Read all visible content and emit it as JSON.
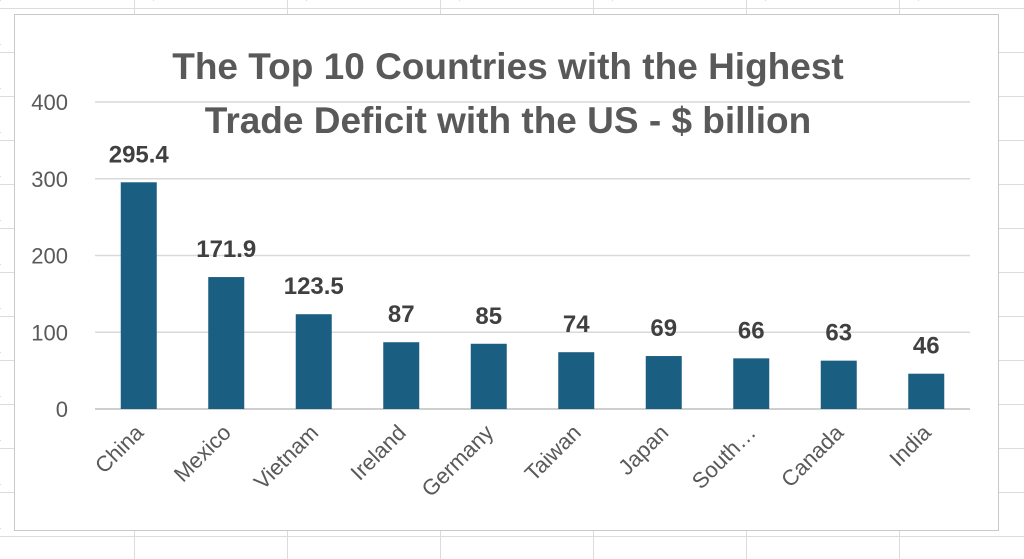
{
  "chart_data": {
    "type": "bar",
    "title": "The Top 10 Countries with the Highest Trade Deficit with the US - $ billion",
    "title_lines": [
      "The Top 10 Countries with the Highest",
      "Trade Deficit with the US - $ billion"
    ],
    "categories": [
      "China",
      "Mexico",
      "Vietnam",
      "Ireland",
      "Germany",
      "Taiwan",
      "Japan",
      "South…",
      "Canada",
      "India"
    ],
    "values": [
      295.4,
      171.9,
      123.5,
      87,
      85,
      74,
      69,
      66,
      63,
      46
    ],
    "data_labels": [
      "295.4",
      "171.9",
      "123.5",
      "87",
      "85",
      "74",
      "69",
      "66",
      "63",
      "46"
    ],
    "ylim": [
      0,
      400
    ],
    "yticks": [
      0,
      100,
      200,
      300,
      400
    ],
    "xlabel": "",
    "ylabel": "",
    "grid": true,
    "legend": "none",
    "bar_color": "#1a5f82"
  }
}
